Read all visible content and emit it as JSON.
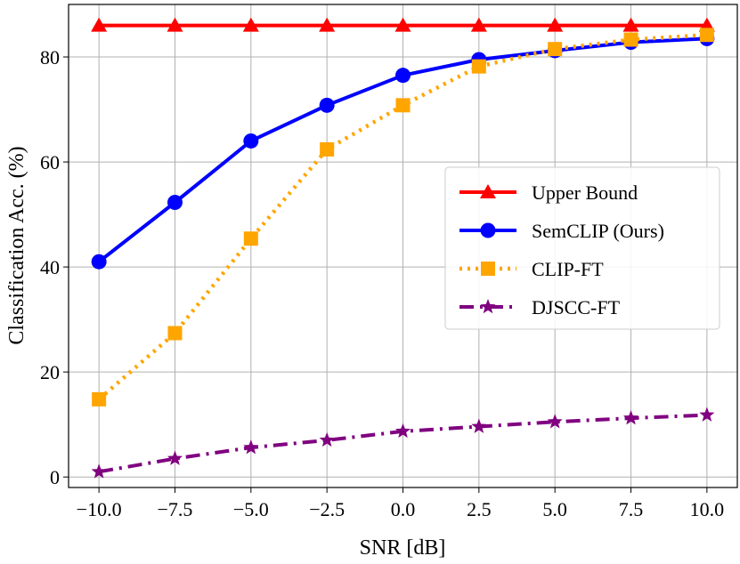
{
  "chart_data": {
    "type": "line",
    "title": "",
    "xlabel": "SNR [dB]",
    "ylabel": "Classification Acc. (%)",
    "xlim": [
      -11.0,
      11.0
    ],
    "ylim": [
      -2,
      90
    ],
    "x": [
      -10.0,
      -7.5,
      -5.0,
      -2.5,
      0.0,
      2.5,
      5.0,
      7.5,
      10.0
    ],
    "xtick_labels": [
      "−10.0",
      "−7.5",
      "−5.0",
      "−2.5",
      "0.0",
      "2.5",
      "5.0",
      "7.5",
      "10.0"
    ],
    "xtick_values": [
      -10.0,
      -7.5,
      -5.0,
      -2.5,
      0.0,
      2.5,
      5.0,
      7.5,
      10.0
    ],
    "ytick_labels": [
      "0",
      "20",
      "40",
      "60",
      "80"
    ],
    "ytick_values": [
      0,
      20,
      40,
      60,
      80
    ],
    "grid": true,
    "legend_position": "center-right",
    "series": [
      {
        "name": "Upper Bound",
        "color": "#ff0000",
        "marker": "triangle",
        "linestyle": "solid",
        "values": [
          86.0,
          86.0,
          86.0,
          86.0,
          86.0,
          86.0,
          86.0,
          86.0,
          86.0
        ]
      },
      {
        "name": "SemCLIP (Ours)",
        "color": "#0000ff",
        "marker": "circle",
        "linestyle": "solid",
        "values": [
          41.0,
          52.3,
          64.0,
          70.8,
          76.5,
          79.5,
          81.2,
          82.8,
          83.5
        ]
      },
      {
        "name": "CLIP-FT",
        "color": "#ffa500",
        "marker": "square",
        "linestyle": "dotted",
        "values": [
          14.8,
          27.4,
          45.4,
          62.4,
          70.8,
          78.2,
          81.5,
          83.3,
          84.2
        ]
      },
      {
        "name": "DJSCC-FT",
        "color": "#800080",
        "marker": "star",
        "linestyle": "dashdot",
        "values": [
          1.0,
          3.5,
          5.6,
          7.0,
          8.7,
          9.6,
          10.5,
          11.2,
          11.8
        ]
      }
    ]
  }
}
